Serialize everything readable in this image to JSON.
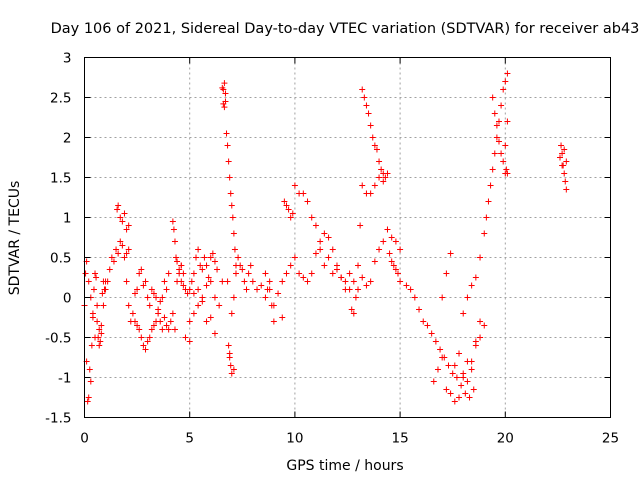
{
  "chart_data": {
    "type": "scatter",
    "title": "Day 106 of 2021, Sidereal Day-to-day VTEC variation (SDTVAR) for receiver ab43",
    "xlabel": "GPS time / hours",
    "ylabel": "SDTVAR / TECUs",
    "xlim": [
      0,
      25
    ],
    "ylim": [
      -1.5,
      3
    ],
    "xticks": [
      "0",
      "5",
      "10",
      "15",
      "20",
      "25"
    ],
    "yticks": [
      "-1.5",
      "-1",
      "-0.5",
      "0",
      "0.5",
      "1",
      "1.5",
      "2",
      "2.5",
      "3"
    ],
    "grid": true,
    "marker": "+",
    "color": "#ff0000",
    "series": [
      {
        "name": "SDTVAR",
        "x": [
          0.0,
          0.1,
          0.15,
          0.2,
          0.25,
          0.3,
          0.35,
          0.4,
          0.45,
          0.5,
          0.55,
          0.6,
          0.65,
          0.7,
          0.75,
          0.8,
          0.85,
          0.9,
          0.95,
          1.0,
          0.05,
          0.1,
          0.2,
          0.3,
          0.4,
          0.5,
          0.6,
          0.7,
          0.8,
          0.9,
          1.0,
          1.1,
          1.2,
          1.3,
          1.4,
          1.5,
          1.6,
          1.7,
          1.8,
          1.9,
          2.0,
          2.1,
          1.55,
          1.6,
          1.7,
          1.8,
          1.9,
          2.0,
          2.1,
          2.0,
          2.1,
          2.2,
          2.3,
          2.4,
          2.5,
          2.6,
          2.7,
          2.8,
          2.9,
          3.0,
          3.1,
          3.2,
          3.3,
          3.4,
          3.5,
          3.6,
          3.7,
          3.8,
          3.9,
          4.0,
          4.1,
          4.2,
          4.3,
          4.4,
          4.5,
          4.6,
          4.7,
          2.4,
          2.5,
          2.6,
          2.7,
          2.8,
          2.9,
          3.0,
          3.1,
          3.2,
          3.3,
          3.4,
          3.5,
          3.6,
          3.7,
          3.8,
          3.9,
          4.0,
          4.2,
          4.25,
          4.3,
          4.35,
          4.4,
          4.5,
          4.6,
          4.7,
          4.8,
          4.9,
          5.0,
          5.1,
          5.2,
          5.3,
          5.4,
          5.5,
          5.6,
          5.7,
          5.8,
          5.9,
          6.0,
          6.1,
          6.2,
          6.3,
          4.6,
          4.8,
          5.0,
          5.2,
          5.4,
          5.6,
          5.8,
          6.0,
          6.2,
          5.0,
          5.2,
          5.4,
          5.6,
          5.8,
          6.0,
          6.2,
          6.4,
          6.55,
          6.6,
          6.65,
          6.7,
          6.55,
          6.6,
          6.65,
          6.7,
          6.75,
          6.8,
          6.85,
          6.9,
          6.95,
          7.0,
          7.05,
          7.1,
          7.15,
          7.2,
          6.8,
          6.85,
          6.9,
          6.95,
          7.0,
          7.1,
          6.9,
          7.0,
          7.1,
          7.2,
          7.3,
          7.4,
          7.5,
          7.6,
          7.7,
          7.8,
          7.9,
          8.0,
          8.2,
          8.4,
          8.6,
          8.8,
          9.0,
          9.2,
          9.4,
          9.6,
          9.8,
          10.0,
          10.2,
          10.4,
          10.6,
          10.8,
          11.0,
          11.2,
          11.4,
          11.6,
          11.8,
          12.0,
          12.2,
          12.4,
          12.6,
          12.7,
          12.8,
          12.9,
          13.0,
          13.1,
          13.2,
          13.3,
          13.4,
          13.5,
          13.6,
          13.7,
          13.8,
          13.9,
          14.0,
          14.1,
          14.2,
          14.3,
          14.4,
          13.2,
          13.4,
          13.6,
          13.8,
          14.0,
          14.2,
          8.6,
          8.7,
          8.8,
          8.9,
          9.0,
          9.4,
          9.5,
          9.6,
          9.7,
          9.8,
          9.9,
          10.0,
          10.2,
          10.4,
          10.6,
          10.8,
          11.0,
          11.2,
          11.4,
          11.6,
          11.8,
          12.0,
          12.2,
          12.4,
          12.6,
          12.8,
          13.0,
          13.2,
          13.4,
          13.6,
          13.8,
          14.0,
          14.2,
          14.4,
          14.6,
          14.8,
          15.0,
          14.5,
          14.6,
          14.7,
          14.8,
          14.9,
          15.0,
          15.3,
          15.5,
          15.7,
          15.9,
          16.1,
          16.3,
          16.5,
          16.7,
          16.9,
          17.1,
          17.3,
          17.5,
          17.7,
          17.9,
          18.1,
          18.3,
          18.5,
          16.6,
          16.8,
          17.0,
          17.2,
          17.4,
          17.6,
          17.8,
          18.0,
          18.2,
          18.4,
          18.6,
          18.8,
          17.0,
          17.2,
          17.4,
          17.6,
          17.8,
          18.0,
          18.2,
          18.4,
          18.6,
          18.8,
          19.0,
          18.0,
          18.2,
          18.4,
          18.6,
          18.8,
          19.0,
          19.1,
          19.2,
          19.3,
          19.4,
          19.5,
          19.6,
          19.7,
          19.8,
          19.9,
          20.0,
          20.1,
          19.4,
          19.5,
          19.6,
          19.7,
          19.8,
          19.9,
          20.0,
          20.1,
          20.0,
          20.05,
          20.1,
          22.6,
          22.65,
          22.7,
          22.75,
          22.8,
          22.85,
          22.9,
          22.7,
          22.8,
          22.9
        ],
        "y": [
          -0.1,
          -0.8,
          -1.3,
          -1.25,
          -0.9,
          -1.05,
          -0.6,
          -0.2,
          0.1,
          0.3,
          0.25,
          -0.1,
          -0.5,
          -0.4,
          -0.55,
          -0.45,
          0.05,
          0.2,
          0.1,
          0.2,
          0.3,
          0.45,
          0.2,
          0.0,
          -0.25,
          -0.5,
          -0.3,
          -0.6,
          -0.35,
          -0.1,
          0.1,
          0.2,
          0.35,
          0.5,
          0.45,
          0.6,
          0.55,
          0.7,
          0.65,
          0.5,
          0.55,
          0.6,
          1.1,
          1.15,
          1.0,
          0.95,
          1.05,
          0.85,
          0.9,
          0.2,
          -0.1,
          -0.3,
          -0.2,
          0.05,
          0.1,
          0.3,
          0.35,
          0.15,
          0.2,
          0.0,
          -0.1,
          0.1,
          0.05,
          0.0,
          -0.2,
          -0.3,
          -0.4,
          -0.25,
          -0.35,
          -0.4,
          -0.3,
          -0.2,
          -0.4,
          0.2,
          0.35,
          0.4,
          0.3,
          -0.3,
          -0.35,
          -0.4,
          -0.5,
          -0.6,
          -0.65,
          -0.55,
          -0.5,
          -0.4,
          -0.35,
          -0.3,
          -0.15,
          -0.05,
          0.0,
          0.2,
          0.1,
          0.3,
          0.95,
          0.85,
          0.7,
          0.5,
          0.45,
          0.3,
          0.2,
          0.15,
          0.1,
          0.05,
          0.1,
          0.2,
          0.3,
          0.5,
          0.6,
          0.4,
          0.35,
          0.5,
          0.4,
          0.25,
          0.5,
          0.55,
          0.45,
          0.35,
          0.4,
          -0.5,
          -0.3,
          -0.2,
          -0.1,
          0.0,
          -0.3,
          -0.25,
          -0.45,
          -0.55,
          0.05,
          0.1,
          -0.05,
          0.15,
          0.2,
          0.0,
          -0.1,
          0.2,
          2.6,
          2.68,
          2.55,
          2.62,
          2.42,
          2.38,
          2.45,
          2.05,
          1.9,
          1.7,
          1.5,
          1.3,
          1.15,
          1.0,
          0.8,
          0.6,
          0.4,
          0.2,
          -0.6,
          -0.75,
          -0.85,
          -0.95,
          -0.9,
          -0.7,
          -0.2,
          0.0,
          0.3,
          0.5,
          0.4,
          0.35,
          0.2,
          0.1,
          0.3,
          0.4,
          0.2,
          0.1,
          0.15,
          0.0,
          0.1,
          -0.1,
          0.05,
          0.2,
          0.3,
          0.4,
          0.5,
          0.3,
          0.25,
          0.2,
          0.3,
          0.55,
          0.7,
          0.8,
          0.75,
          0.6,
          0.4,
          0.25,
          0.2,
          0.1,
          -0.15,
          -0.2,
          0.0,
          0.4,
          0.9,
          2.6,
          2.5,
          2.4,
          2.3,
          2.15,
          2.0,
          1.9,
          1.85,
          1.7,
          1.6,
          1.55,
          1.5,
          1.55,
          1.4,
          1.3,
          1.3,
          1.4,
          1.5,
          1.45,
          0.3,
          0.1,
          0.2,
          -0.1,
          -0.3,
          -0.25,
          1.2,
          1.15,
          1.1,
          1.0,
          1.05,
          1.4,
          1.3,
          1.3,
          1.2,
          1.0,
          0.9,
          0.6,
          0.4,
          0.5,
          0.3,
          0.35,
          0.25,
          0.1,
          0.3,
          0.2,
          0.1,
          0.25,
          0.15,
          0.2,
          0.45,
          0.6,
          0.7,
          0.85,
          0.75,
          0.7,
          0.6,
          0.55,
          0.45,
          0.4,
          0.35,
          0.3,
          0.2,
          0.15,
          0.1,
          0.0,
          -0.15,
          -0.3,
          -0.35,
          -0.45,
          -0.55,
          -0.65,
          -0.75,
          -0.85,
          -0.95,
          -1.0,
          -1.1,
          -1.2,
          -1.25,
          -1.15,
          -1.05,
          -0.9,
          -0.75,
          -1.15,
          -1.2,
          -0.85,
          -0.7,
          -0.95,
          -1.05,
          -0.8,
          -0.55,
          -0.3,
          0.0,
          0.3,
          0.55,
          -1.3,
          -1.25,
          -1.0,
          -0.8,
          -0.9,
          -0.6,
          -0.5,
          -0.35,
          -0.2,
          0.0,
          0.15,
          0.25,
          0.5,
          0.8,
          1.0,
          1.2,
          1.4,
          1.6,
          1.8,
          2.0,
          2.2,
          2.4,
          2.6,
          2.7,
          2.8,
          2.5,
          2.3,
          2.15,
          1.95,
          1.8,
          1.7,
          1.9,
          2.2,
          1.55,
          1.6,
          1.55,
          1.75,
          1.9,
          1.8,
          1.65,
          1.55,
          1.45,
          1.35,
          1.65,
          1.85,
          1.7
        ]
      }
    ]
  }
}
